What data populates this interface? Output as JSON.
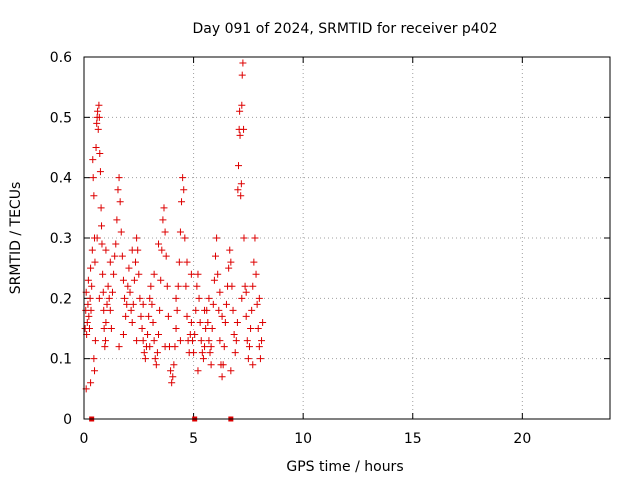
{
  "chart_data": {
    "type": "scatter",
    "title": "Day 091 of 2024, SRMTID for receiver p402",
    "xlabel": "GPS time / hours",
    "ylabel": "SRMTID / TECUs",
    "xlim": [
      0,
      24
    ],
    "ylim": [
      0,
      0.6
    ],
    "x_ticks": [
      0,
      5,
      10,
      15,
      20
    ],
    "x_tick_labels": [
      "0",
      "5",
      "10",
      "15",
      "20"
    ],
    "y_ticks": [
      0,
      0.1,
      0.2,
      0.3,
      0.4,
      0.5,
      0.6
    ],
    "y_tick_labels": [
      "0",
      "0.1",
      "0.2",
      "0.3",
      "0.4",
      "0.5",
      "0.6"
    ],
    "grid": true,
    "marker": "plus",
    "color": "#dd0000",
    "series": [
      {
        "name": "SRMTID",
        "points": [
          [
            0.05,
            0.15
          ],
          [
            0.08,
            0.18
          ],
          [
            0.1,
            0.21
          ],
          [
            0.12,
            0.14
          ],
          [
            0.15,
            0.16
          ],
          [
            0.18,
            0.19
          ],
          [
            0.2,
            0.23
          ],
          [
            0.22,
            0.17
          ],
          [
            0.25,
            0.15
          ],
          [
            0.28,
            0.2
          ],
          [
            0.3,
            0.25
          ],
          [
            0.32,
            0.18
          ],
          [
            0.35,
            0.22
          ],
          [
            0.38,
            0.28
          ],
          [
            0.4,
            0.43
          ],
          [
            0.42,
            0.4
          ],
          [
            0.45,
            0.37
          ],
          [
            0.48,
            0.3
          ],
          [
            0.5,
            0.26
          ],
          [
            0.52,
            0.13
          ],
          [
            0.45,
            0.1
          ],
          [
            0.48,
            0.08
          ],
          [
            0.55,
            0.45
          ],
          [
            0.58,
            0.49
          ],
          [
            0.6,
            0.5
          ],
          [
            0.62,
            0.51
          ],
          [
            0.65,
            0.48
          ],
          [
            0.68,
            0.52
          ],
          [
            0.7,
            0.5
          ],
          [
            0.72,
            0.44
          ],
          [
            0.75,
            0.41
          ],
          [
            0.78,
            0.35
          ],
          [
            0.8,
            0.32
          ],
          [
            0.82,
            0.29
          ],
          [
            0.85,
            0.24
          ],
          [
            0.88,
            0.21
          ],
          [
            0.9,
            0.18
          ],
          [
            0.92,
            0.15
          ],
          [
            0.95,
            0.12
          ],
          [
            0.98,
            0.13
          ],
          [
            1.0,
            0.16
          ],
          [
            1.05,
            0.19
          ],
          [
            1.1,
            0.22
          ],
          [
            1.15,
            0.2
          ],
          [
            1.2,
            0.18
          ],
          [
            1.25,
            0.15
          ],
          [
            1.3,
            0.21
          ],
          [
            1.35,
            0.24
          ],
          [
            1.4,
            0.27
          ],
          [
            1.45,
            0.29
          ],
          [
            1.5,
            0.33
          ],
          [
            1.55,
            0.38
          ],
          [
            1.6,
            0.4
          ],
          [
            1.65,
            0.36
          ],
          [
            1.7,
            0.31
          ],
          [
            1.75,
            0.27
          ],
          [
            1.8,
            0.23
          ],
          [
            1.85,
            0.2
          ],
          [
            1.9,
            0.17
          ],
          [
            1.95,
            0.19
          ],
          [
            2.0,
            0.22
          ],
          [
            2.05,
            0.25
          ],
          [
            2.1,
            0.21
          ],
          [
            2.15,
            0.18
          ],
          [
            2.2,
            0.16
          ],
          [
            2.25,
            0.19
          ],
          [
            2.3,
            0.23
          ],
          [
            2.35,
            0.26
          ],
          [
            2.4,
            0.3
          ],
          [
            2.45,
            0.28
          ],
          [
            2.5,
            0.24
          ],
          [
            2.55,
            0.2
          ],
          [
            2.6,
            0.17
          ],
          [
            2.65,
            0.15
          ],
          [
            2.7,
            0.13
          ],
          [
            2.75,
            0.11
          ],
          [
            2.8,
            0.1
          ],
          [
            2.85,
            0.12
          ],
          [
            2.9,
            0.14
          ],
          [
            2.95,
            0.17
          ],
          [
            3.0,
            0.2
          ],
          [
            3.05,
            0.22
          ],
          [
            3.1,
            0.19
          ],
          [
            3.15,
            0.16
          ],
          [
            3.2,
            0.13
          ],
          [
            3.25,
            0.1
          ],
          [
            3.3,
            0.09
          ],
          [
            3.35,
            0.11
          ],
          [
            3.4,
            0.14
          ],
          [
            3.45,
            0.18
          ],
          [
            3.5,
            0.23
          ],
          [
            3.55,
            0.28
          ],
          [
            3.6,
            0.33
          ],
          [
            3.65,
            0.35
          ],
          [
            3.7,
            0.31
          ],
          [
            3.75,
            0.27
          ],
          [
            3.8,
            0.22
          ],
          [
            3.85,
            0.17
          ],
          [
            3.9,
            0.12
          ],
          [
            3.95,
            0.08
          ],
          [
            4.0,
            0.06
          ],
          [
            4.05,
            0.07
          ],
          [
            4.1,
            0.09
          ],
          [
            4.15,
            0.12
          ],
          [
            4.2,
            0.15
          ],
          [
            4.25,
            0.18
          ],
          [
            4.3,
            0.22
          ],
          [
            4.35,
            0.26
          ],
          [
            4.4,
            0.31
          ],
          [
            4.45,
            0.36
          ],
          [
            4.5,
            0.4
          ],
          [
            4.55,
            0.38
          ],
          [
            4.6,
            0.3
          ],
          [
            4.65,
            0.22
          ],
          [
            4.7,
            0.17
          ],
          [
            4.75,
            0.13
          ],
          [
            4.8,
            0.11
          ],
          [
            4.85,
            0.14
          ],
          [
            4.9,
            0.16
          ],
          [
            4.95,
            0.13
          ],
          [
            5.0,
            0.11
          ],
          [
            5.05,
            0.14
          ],
          [
            5.1,
            0.18
          ],
          [
            5.15,
            0.22
          ],
          [
            5.2,
            0.24
          ],
          [
            5.25,
            0.2
          ],
          [
            5.3,
            0.16
          ],
          [
            5.35,
            0.13
          ],
          [
            5.4,
            0.11
          ],
          [
            5.45,
            0.1
          ],
          [
            5.5,
            0.12
          ],
          [
            5.55,
            0.15
          ],
          [
            5.6,
            0.18
          ],
          [
            5.65,
            0.16
          ],
          [
            5.7,
            0.13
          ],
          [
            5.75,
            0.11
          ],
          [
            5.8,
            0.12
          ],
          [
            5.85,
            0.15
          ],
          [
            5.9,
            0.19
          ],
          [
            5.95,
            0.23
          ],
          [
            6.0,
            0.27
          ],
          [
            6.05,
            0.3
          ],
          [
            6.1,
            0.24
          ],
          [
            6.15,
            0.18
          ],
          [
            6.2,
            0.13
          ],
          [
            6.25,
            0.09
          ],
          [
            6.3,
            0.07
          ],
          [
            6.35,
            0.09
          ],
          [
            6.4,
            0.12
          ],
          [
            6.45,
            0.16
          ],
          [
            6.5,
            0.19
          ],
          [
            6.55,
            0.22
          ],
          [
            6.6,
            0.25
          ],
          [
            6.65,
            0.28
          ],
          [
            6.7,
            0.26
          ],
          [
            6.75,
            0.22
          ],
          [
            6.8,
            0.18
          ],
          [
            6.85,
            0.14
          ],
          [
            6.9,
            0.11
          ],
          [
            6.95,
            0.13
          ],
          [
            7.0,
            0.16
          ],
          [
            7.02,
            0.38
          ],
          [
            7.05,
            0.42
          ],
          [
            7.08,
            0.48
          ],
          [
            7.1,
            0.51
          ],
          [
            7.12,
            0.47
          ],
          [
            7.15,
            0.37
          ],
          [
            7.18,
            0.39
          ],
          [
            7.2,
            0.52
          ],
          [
            7.22,
            0.57
          ],
          [
            7.25,
            0.59
          ],
          [
            7.28,
            0.48
          ],
          [
            7.3,
            0.3
          ],
          [
            7.35,
            0.22
          ],
          [
            7.4,
            0.17
          ],
          [
            7.45,
            0.13
          ],
          [
            7.5,
            0.1
          ],
          [
            7.55,
            0.12
          ],
          [
            7.6,
            0.15
          ],
          [
            7.65,
            0.18
          ],
          [
            7.7,
            0.22
          ],
          [
            7.75,
            0.26
          ],
          [
            7.8,
            0.3
          ],
          [
            7.85,
            0.24
          ],
          [
            7.9,
            0.19
          ],
          [
            7.95,
            0.15
          ],
          [
            8.0,
            0.12
          ],
          [
            8.05,
            0.1
          ],
          [
            8.1,
            0.13
          ],
          [
            8.15,
            0.16
          ],
          [
            0.1,
            0.05
          ],
          [
            0.3,
            0.06
          ],
          [
            0.7,
            0.2
          ],
          [
            1.2,
            0.26
          ],
          [
            1.8,
            0.14
          ],
          [
            2.2,
            0.28
          ],
          [
            2.7,
            0.19
          ],
          [
            3.2,
            0.24
          ],
          [
            3.7,
            0.12
          ],
          [
            4.2,
            0.2
          ],
          [
            4.7,
            0.26
          ],
          [
            5.2,
            0.08
          ],
          [
            5.7,
            0.2
          ],
          [
            6.2,
            0.21
          ],
          [
            6.7,
            0.08
          ],
          [
            7.2,
            0.2
          ],
          [
            7.7,
            0.09
          ],
          [
            8.0,
            0.2
          ],
          [
            1.6,
            0.12
          ],
          [
            3.4,
            0.29
          ],
          [
            4.4,
            0.13
          ],
          [
            5.8,
            0.09
          ],
          [
            6.3,
            0.17
          ],
          [
            7.4,
            0.21
          ],
          [
            2.4,
            0.13
          ],
          [
            1.0,
            0.28
          ],
          [
            0.6,
            0.3
          ],
          [
            4.9,
            0.24
          ],
          [
            3.0,
            0.12
          ],
          [
            5.5,
            0.18
          ]
        ]
      }
    ],
    "bottom_markers": [
      0.35,
      5.05,
      6.7
    ]
  }
}
